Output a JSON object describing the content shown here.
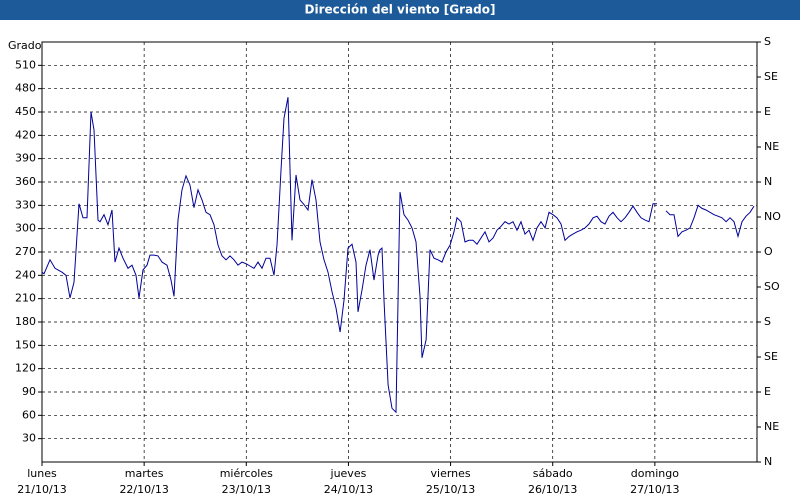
{
  "chart_data": {
    "type": "line",
    "title": "Dirección del viento [Grado]",
    "y_label": "Grado",
    "xlim": [
      0,
      7
    ],
    "xticks": [
      {
        "value": 0,
        "label": "lunes"
      },
      {
        "value": 1,
        "label": "martes"
      },
      {
        "value": 2,
        "label": "miércoles"
      },
      {
        "value": 3,
        "label": "jueves"
      },
      {
        "value": 4,
        "label": "viernes"
      },
      {
        "value": 5,
        "label": "sábado"
      },
      {
        "value": 6,
        "label": "domingo"
      }
    ],
    "xtick_dates": [
      "21/10/13",
      "22/10/13",
      "23/10/13",
      "24/10/13",
      "25/10/13",
      "26/10/13",
      "27/10/13"
    ],
    "ylim": [
      0,
      540
    ],
    "yticks": [
      30,
      60,
      90,
      120,
      150,
      180,
      210,
      240,
      270,
      300,
      330,
      360,
      390,
      420,
      450,
      480,
      510
    ],
    "y2lim": [
      0,
      540
    ],
    "y2ticks": [
      {
        "value": 0,
        "label": "N"
      },
      {
        "value": 45,
        "label": "NE"
      },
      {
        "value": 90,
        "label": "E"
      },
      {
        "value": 135,
        "label": "SE"
      },
      {
        "value": 180,
        "label": "S"
      },
      {
        "value": 225,
        "label": "SO"
      },
      {
        "value": 270,
        "label": "O"
      },
      {
        "value": 315,
        "label": "NO"
      },
      {
        "value": 360,
        "label": "N"
      },
      {
        "value": 405,
        "label": "NE"
      },
      {
        "value": 450,
        "label": "E"
      },
      {
        "value": 495,
        "label": "SE"
      },
      {
        "value": 540,
        "label": "S"
      }
    ],
    "grid": true,
    "x": [
      0,
      0.02,
      0.078,
      0.127,
      0.196,
      0.235,
      0.274,
      0.313,
      0.362,
      0.401,
      0.441,
      0.48,
      0.509,
      0.548,
      0.568,
      0.607,
      0.646,
      0.685,
      0.715,
      0.754,
      0.793,
      0.842,
      0.881,
      0.92,
      0.95,
      0.989,
      1.028,
      1.057,
      1.097,
      1.136,
      1.175,
      1.224,
      1.263,
      1.292,
      1.331,
      1.371,
      1.41,
      1.449,
      1.488,
      1.527,
      1.566,
      1.606,
      1.645,
      1.684,
      1.723,
      1.762,
      1.801,
      1.841,
      1.88,
      1.919,
      1.958,
      1.997,
      2.036,
      2.076,
      2.115,
      2.154,
      2.193,
      2.232,
      2.271,
      2.301,
      2.34,
      2.369,
      2.408,
      2.448,
      2.487,
      2.526,
      2.565,
      2.604,
      2.643,
      2.683,
      2.722,
      2.761,
      2.8,
      2.839,
      2.878,
      2.918,
      2.957,
      2.996,
      3.035,
      3.074,
      3.094,
      3.133,
      3.172,
      3.211,
      3.25,
      3.29,
      3.309,
      3.329,
      3.348,
      3.388,
      3.427,
      3.466,
      3.505,
      3.544,
      3.583,
      3.622,
      3.662,
      3.701,
      3.72,
      3.76,
      3.799,
      3.838,
      3.877,
      3.916,
      3.955,
      3.995,
      4.034,
      4.063,
      4.102,
      4.141,
      4.181,
      4.22,
      4.259,
      4.298,
      4.337,
      4.376,
      4.416,
      4.455,
      4.494,
      4.533,
      4.572,
      4.611,
      4.65,
      4.69,
      4.729,
      4.768,
      4.807,
      4.846,
      4.885,
      4.925,
      4.964,
      5.003,
      5.042,
      5.081,
      5.12,
      5.16,
      5.199,
      5.238,
      5.277,
      5.316,
      5.355,
      5.395,
      5.434,
      5.473,
      5.512,
      5.551,
      5.59,
      5.63,
      5.669,
      5.708,
      5.747,
      5.786,
      5.825,
      5.864,
      5.904,
      5.943,
      5.982,
      6.021,
      6.06,
      6.109,
      6.148,
      6.187,
      6.227,
      6.266,
      6.305,
      6.344,
      6.383,
      6.423,
      6.462,
      6.501,
      6.54,
      6.579,
      6.618,
      6.657,
      6.697,
      6.736,
      6.775,
      6.814,
      6.853,
      6.892,
      6.932,
      6.971
    ],
    "series": [
      {
        "name": "Dirección del viento",
        "color": "#000099",
        "values": [
          244,
          242,
          260,
          249,
          244,
          240,
          211,
          231,
          332,
          314,
          314,
          450,
          427,
          311,
          309,
          318,
          305,
          324,
          257,
          275,
          262,
          249,
          253,
          240,
          211,
          247,
          253,
          266,
          266,
          265,
          257,
          253,
          234,
          213,
          311,
          350,
          368,
          356,
          327,
          350,
          337,
          321,
          318,
          305,
          279,
          265,
          260,
          265,
          260,
          253,
          257,
          255,
          252,
          249,
          257,
          249,
          262,
          262,
          240,
          279,
          375,
          442,
          469,
          285,
          369,
          337,
          331,
          324,
          363,
          337,
          283,
          260,
          244,
          219,
          198,
          167,
          208,
          275,
          280,
          257,
          193,
          221,
          253,
          273,
          234,
          266,
          273,
          275,
          208,
          99,
          69,
          64,
          347,
          318,
          311,
          301,
          283,
          213,
          134,
          157,
          273,
          262,
          260,
          257,
          270,
          279,
          296,
          314,
          309,
          283,
          285,
          285,
          280,
          288,
          296,
          283,
          288,
          298,
          303,
          309,
          306,
          309,
          298,
          309,
          293,
          298,
          285,
          301,
          309,
          301,
          321,
          318,
          314,
          306,
          285,
          290,
          293,
          296,
          298,
          301,
          306,
          314,
          316,
          309,
          306,
          316,
          321,
          314,
          309,
          314,
          321,
          329,
          321,
          314,
          311,
          309,
          332,
          332,
          null,
          323,
          318,
          318,
          290,
          296,
          298,
          301,
          314,
          330,
          326,
          324,
          321,
          318,
          316,
          314,
          309,
          314,
          309,
          290,
          309,
          316,
          321,
          329
        ]
      }
    ]
  }
}
